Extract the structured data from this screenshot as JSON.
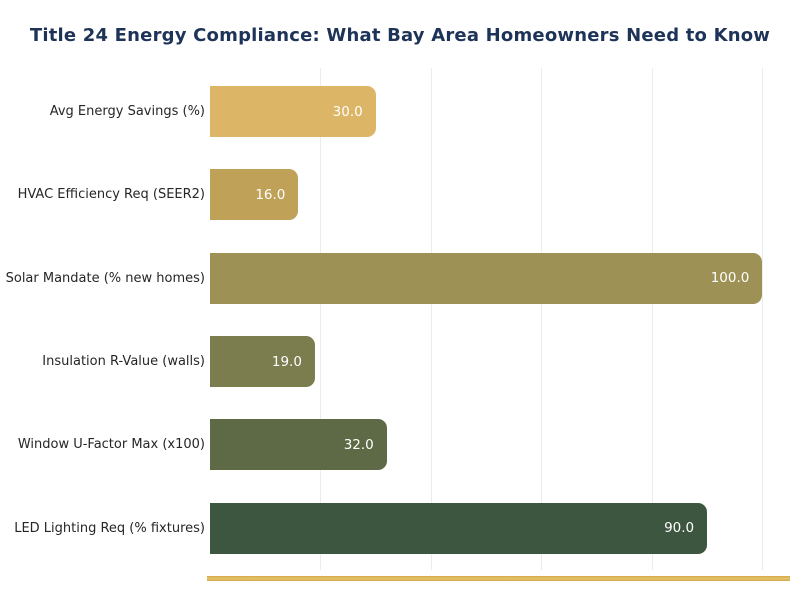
{
  "chart_data": {
    "type": "bar",
    "orientation": "horizontal",
    "title": "Title 24 Energy Compliance: What Bay Area Homeowners Need to Know",
    "categories": [
      "Avg Energy Savings (%)",
      "HVAC Efficiency Req (SEER2)",
      "Solar Mandate (% new homes)",
      "Insulation R-Value (walls)",
      "Window U-Factor Max (x100)",
      "LED Lighting Req (% fixtures)"
    ],
    "values": [
      30.0,
      16.0,
      100.0,
      19.0,
      32.0,
      90.0
    ],
    "value_labels": [
      "30.0",
      "16.0",
      "100.0",
      "19.0",
      "32.0",
      "90.0"
    ],
    "bar_colors": [
      "#dcb566",
      "#bfa158",
      "#9d9155",
      "#7b7d4e",
      "#5e6a45",
      "#3d5640"
    ],
    "xlim": [
      0,
      105
    ],
    "gridlines_x": [
      20,
      40,
      60,
      80,
      100
    ],
    "grid": "vertical-only",
    "legend": "none",
    "xlabel": "",
    "ylabel": ""
  },
  "colors": {
    "title_text": "#1d3357",
    "category_label_text": "#262626",
    "value_label_text": "#ffffff",
    "gridline": "#ececec",
    "baseline": "#d5a946",
    "background": "#ffffff"
  }
}
